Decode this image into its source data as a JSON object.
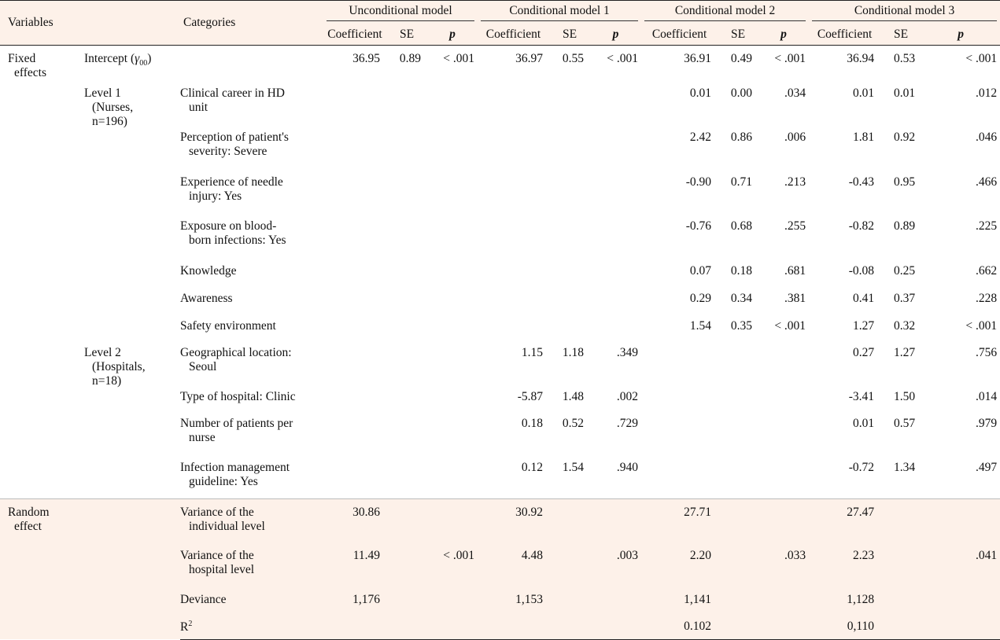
{
  "header": {
    "variables": "Variables",
    "categories": "Categories",
    "models": [
      "Unconditional model",
      "Conditional model 1",
      "Conditional model 2",
      "Conditional model 3"
    ],
    "sub": {
      "coef": "Coefficient",
      "se": "SE",
      "p": "p"
    }
  },
  "fixed": {
    "label_1": "Fixed",
    "label_2": "effects",
    "intercept": {
      "label": "Intercept (",
      "gamma": "γ",
      "sub": "00",
      "close": ")",
      "values": [
        "36.95",
        "0.89",
        "< .001",
        "36.97",
        "0.55",
        "< .001",
        "36.91",
        "0.49",
        "< .001",
        "36.94",
        "0.53",
        "< .001"
      ]
    },
    "level1": {
      "title": "Level 1",
      "line2": "(Nurses,",
      "line3": "n=196)"
    },
    "level2": {
      "title": "Level 2",
      "line2": "(Hospitals,",
      "line3": "n=18)"
    },
    "rows": [
      {
        "l1": "Clinical career in HD",
        "l2": "unit",
        "v": [
          "",
          "",
          "",
          "",
          "",
          "",
          "0.01",
          "0.00",
          ".034",
          "0.01",
          "0.01",
          ".012"
        ]
      },
      {
        "l1": "Perception of patient's",
        "l2": "severity: Severe",
        "v": [
          "",
          "",
          "",
          "",
          "",
          "",
          "2.42",
          "0.86",
          ".006",
          "1.81",
          "0.92",
          ".046"
        ]
      },
      {
        "l1": "Experience of needle",
        "l2": "injury: Yes",
        "v": [
          "",
          "",
          "",
          "",
          "",
          "",
          "-0.90",
          "0.71",
          ".213",
          "-0.43",
          "0.95",
          ".466"
        ]
      },
      {
        "l1": "Exposure on blood-",
        "l2": "born infections: Yes",
        "v": [
          "",
          "",
          "",
          "",
          "",
          "",
          "-0.76",
          "0.68",
          ".255",
          "-0.82",
          "0.89",
          ".225"
        ]
      },
      {
        "l1": "Knowledge",
        "l2": "",
        "v": [
          "",
          "",
          "",
          "",
          "",
          "",
          "0.07",
          "0.18",
          ".681",
          "-0.08",
          "0.25",
          ".662"
        ]
      },
      {
        "l1": "Awareness",
        "l2": "",
        "v": [
          "",
          "",
          "",
          "",
          "",
          "",
          "0.29",
          "0.34",
          ".381",
          "0.41",
          "0.37",
          ".228"
        ]
      },
      {
        "l1": "Safety environment",
        "l2": "",
        "v": [
          "",
          "",
          "",
          "",
          "",
          "",
          "1.54",
          "0.35",
          "< .001",
          "1.27",
          "0.32",
          "< .001"
        ]
      },
      {
        "l1": "Geographical location:",
        "l2": "Seoul",
        "v": [
          "",
          "",
          "",
          "1.15",
          "1.18",
          ".349",
          "",
          "",
          "",
          "0.27",
          "1.27",
          ".756"
        ]
      },
      {
        "l1": "Type of hospital: Clinic",
        "l2": "",
        "v": [
          "",
          "",
          "",
          "-5.87",
          "1.48",
          ".002",
          "",
          "",
          "",
          "-3.41",
          "1.50",
          ".014"
        ]
      },
      {
        "l1": "Number of patients per",
        "l2": "nurse",
        "v": [
          "",
          "",
          "",
          "0.18",
          "0.52",
          ".729",
          "",
          "",
          "",
          "0.01",
          "0.57",
          ".979"
        ]
      },
      {
        "l1": "Infection management",
        "l2": "guideline: Yes",
        "v": [
          "",
          "",
          "",
          "0.12",
          "1.54",
          ".940",
          "",
          "",
          "",
          "-0.72",
          "1.34",
          ".497"
        ]
      }
    ]
  },
  "random": {
    "label_1": "Random",
    "label_2": "effect",
    "rows": [
      {
        "l1": "Variance of the",
        "l2": "individual level",
        "v": [
          "30.86",
          "",
          "",
          "30.92",
          "",
          "",
          "27.71",
          "",
          "",
          "27.47",
          "",
          ""
        ]
      },
      {
        "l1": "Variance of the",
        "l2": "hospital level",
        "v": [
          "11.49",
          "",
          "< .001",
          "4.48",
          "",
          ".003",
          "2.20",
          "",
          ".033",
          "2.23",
          "",
          ".041"
        ]
      },
      {
        "l1": "Deviance",
        "l2": "",
        "v": [
          "1,176",
          "",
          "",
          "1,153",
          "",
          "",
          "1,141",
          "",
          "",
          "1,128",
          "",
          ""
        ]
      },
      {
        "l1": "R",
        "sup": "2",
        "l2": "",
        "v": [
          "",
          "",
          "",
          "",
          "",
          "",
          "0.102",
          "",
          "",
          "0,110",
          "",
          ""
        ]
      }
    ]
  }
}
